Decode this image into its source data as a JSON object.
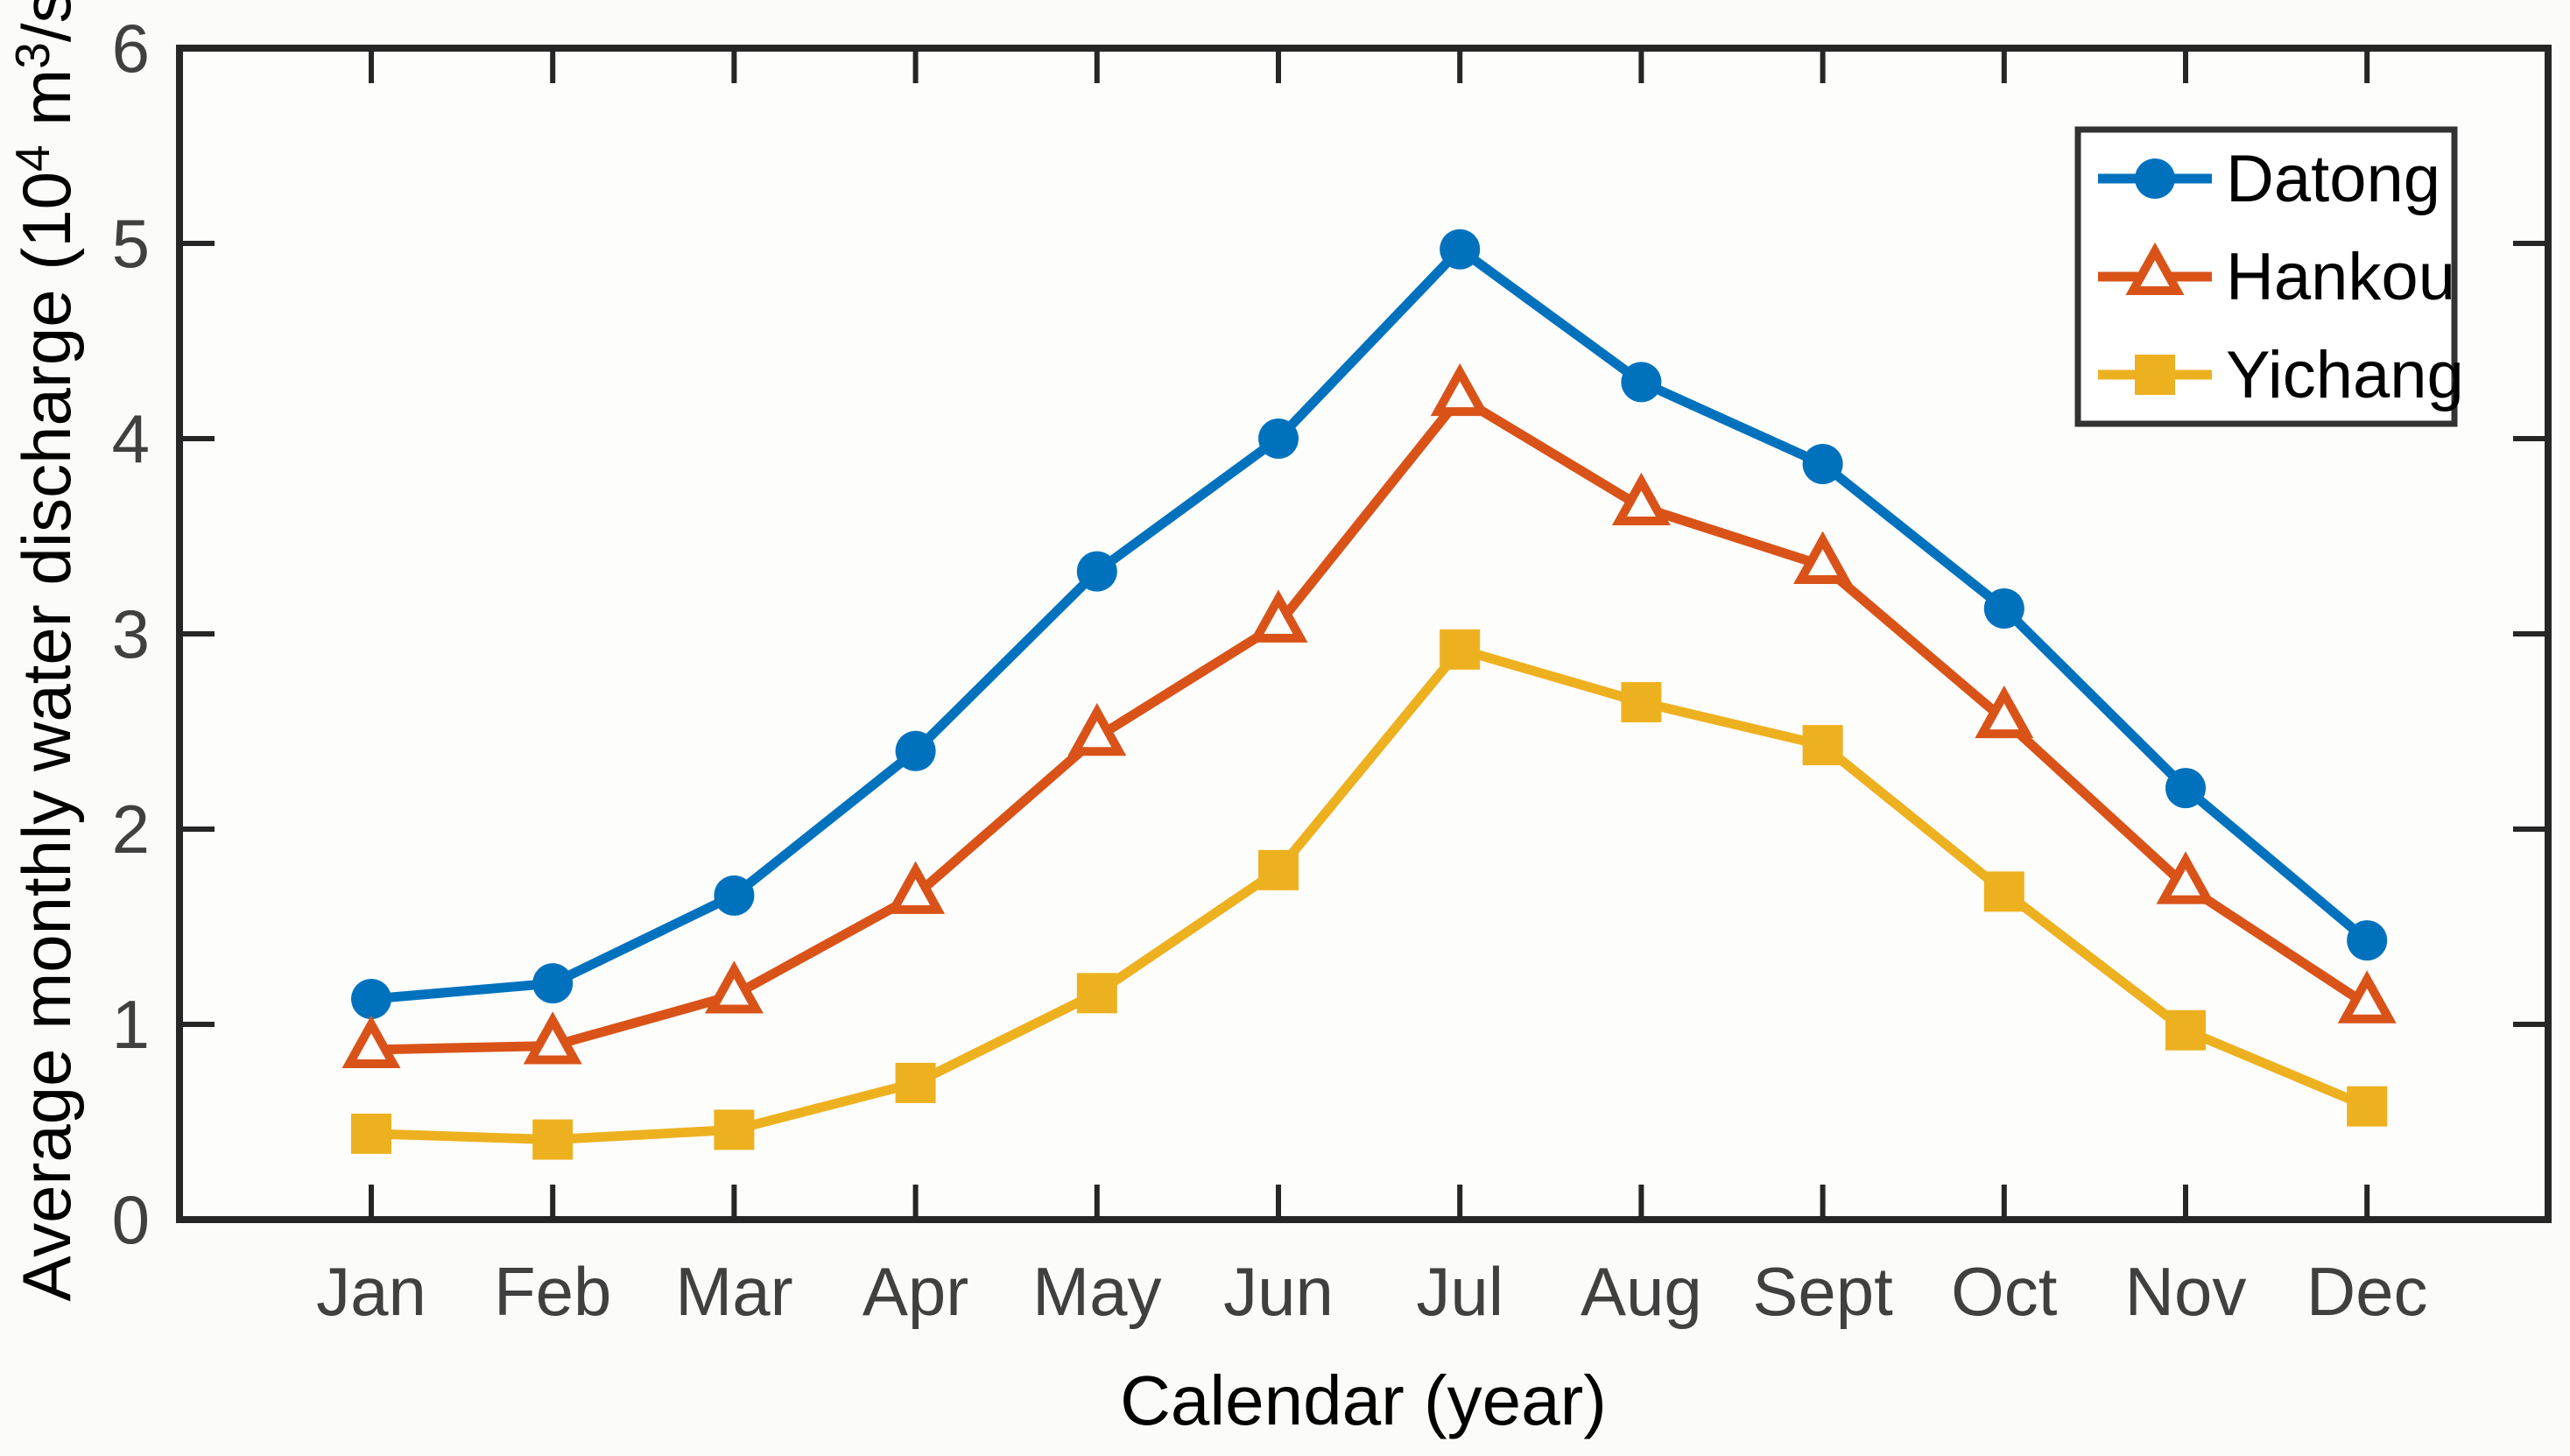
{
  "figure": {
    "background": "#fbfbf9"
  },
  "chart_data": {
    "type": "line",
    "title": "",
    "xlabel": "Calendar (year)",
    "ylabel_plain": "Average monthly water discharge (10⁴ m³/s)",
    "ylabel_parts": [
      {
        "text": "Average monthly water discharge (10",
        "sup": false
      },
      {
        "text": "4",
        "sup": true
      },
      {
        "text": " m",
        "sup": false
      },
      {
        "text": "3",
        "sup": true
      },
      {
        "text": "/s)",
        "sup": false
      }
    ],
    "categories": [
      "Jan",
      "Feb",
      "Mar",
      "Apr",
      "May",
      "Jun",
      "Jul",
      "Aug",
      "Sept",
      "Oct",
      "Nov",
      "Dec"
    ],
    "ylim": [
      0,
      6
    ],
    "yticks": [
      0,
      1,
      2,
      3,
      4,
      5,
      6
    ],
    "grid": false,
    "legend_position": "top-right",
    "legend_entries": [
      "Datong",
      "Hankou",
      "Yichang"
    ],
    "series": [
      {
        "name": "Datong",
        "marker": "circle",
        "color": "#0072BD",
        "values": [
          1.13,
          1.21,
          1.66,
          2.4,
          3.32,
          4.0,
          4.97,
          4.29,
          3.87,
          3.13,
          2.21,
          1.43
        ]
      },
      {
        "name": "Hankou",
        "marker": "triangle-open",
        "color": "#D95319",
        "values": [
          0.87,
          0.89,
          1.15,
          1.66,
          2.47,
          3.05,
          4.21,
          3.65,
          3.35,
          2.56,
          1.71,
          1.1
        ]
      },
      {
        "name": "Yichang",
        "marker": "square",
        "color": "#EDB120",
        "values": [
          0.44,
          0.41,
          0.46,
          0.7,
          1.16,
          1.79,
          2.92,
          2.65,
          2.43,
          1.68,
          0.97,
          0.58
        ]
      }
    ],
    "colors": {
      "axis": "#262626",
      "tick_label": "#404040",
      "label": "#000000",
      "legend_border": "#333333",
      "plot_background": "#fdfdfc"
    }
  }
}
